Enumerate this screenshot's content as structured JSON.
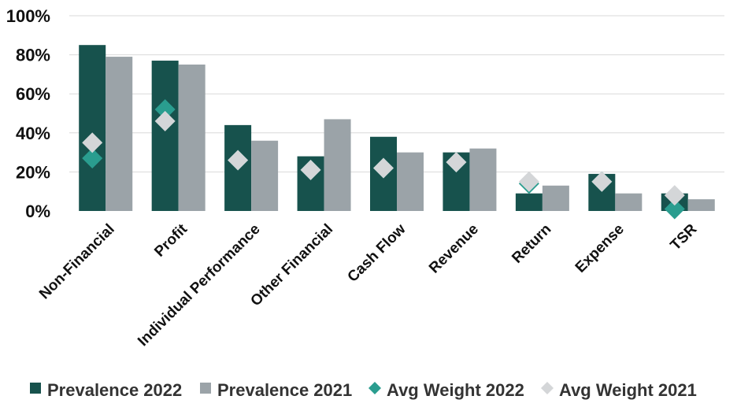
{
  "chart_data": {
    "type": "bar",
    "categories": [
      "Non-Financial",
      "Profit",
      "Individual Performance",
      "Other Financial",
      "Cash Flow",
      "Revenue",
      "Return",
      "Expense",
      "TSR"
    ],
    "series": [
      {
        "name": "Prevalence 2022",
        "kind": "bar",
        "color": "#17524d",
        "values": [
          85,
          77,
          44,
          28,
          38,
          30,
          9,
          19,
          9
        ]
      },
      {
        "name": "Prevalence 2021",
        "kind": "bar",
        "color": "#9ba3a8",
        "values": [
          79,
          75,
          36,
          47,
          30,
          32,
          13,
          9,
          6
        ]
      },
      {
        "name": "Avg Weight 2022",
        "kind": "marker",
        "color": "#2a9d8f",
        "values": [
          27,
          52,
          26,
          21,
          22,
          25,
          14,
          15,
          1
        ]
      },
      {
        "name": "Avg Weight 2021",
        "kind": "marker",
        "color": "#d4d6d8",
        "values": [
          35,
          46,
          26,
          21,
          22,
          25,
          15,
          15,
          8
        ]
      }
    ],
    "yticks": [
      "0%",
      "20%",
      "40%",
      "60%",
      "80%",
      "100%"
    ],
    "ylim": [
      0,
      100
    ],
    "grid": true,
    "legend": "bottom",
    "title": "",
    "xlabel": "",
    "ylabel": ""
  }
}
